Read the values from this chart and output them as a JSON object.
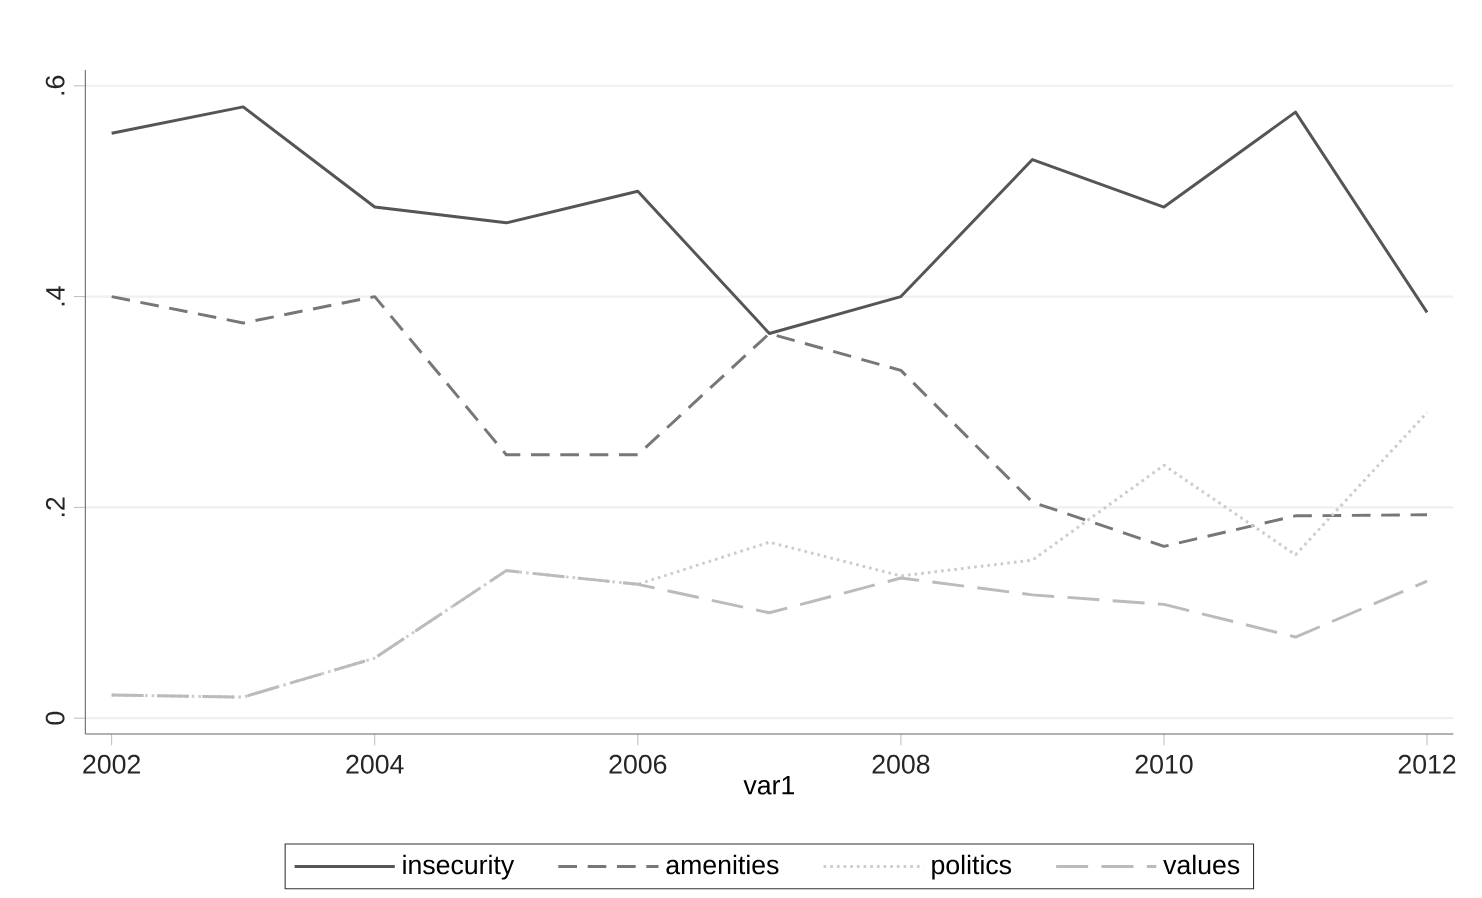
{
  "chart_data": {
    "type": "line",
    "xlabel": "var1",
    "x": [
      2002,
      2003,
      2004,
      2005,
      2006,
      2007,
      2008,
      2009,
      2010,
      2011,
      2012
    ],
    "xlim": [
      2001.8,
      2012.2
    ],
    "xticks": [
      2002,
      2004,
      2006,
      2008,
      2010,
      2012
    ],
    "ylim": [
      -0.015,
      0.615
    ],
    "yticks": [
      {
        "value": 0,
        "label": "0"
      },
      {
        "value": 0.2,
        "label": ".2"
      },
      {
        "value": 0.4,
        "label": ".4"
      },
      {
        "value": 0.6,
        "label": ".6"
      }
    ],
    "grid": "y",
    "legend": "bottom",
    "marker": "none",
    "series": [
      {
        "name": "insecurity",
        "color": "#555555",
        "line_style": "solid",
        "values": [
          0.555,
          0.58,
          0.485,
          0.47,
          0.5,
          0.365,
          0.4,
          0.53,
          0.485,
          0.575,
          0.385
        ]
      },
      {
        "name": "amenities",
        "color": "#777777",
        "line_style": "dashed",
        "values": [
          0.4,
          0.375,
          0.4,
          0.25,
          0.25,
          0.365,
          0.33,
          0.205,
          0.163,
          0.192,
          0.193
        ]
      },
      {
        "name": "politics",
        "color": "#cccccc",
        "line_style": "dotted",
        "values": [
          0.022,
          0.02,
          0.057,
          0.14,
          0.127,
          0.167,
          0.135,
          0.15,
          0.24,
          0.155,
          0.29
        ]
      },
      {
        "name": "values",
        "color": "#bbbbbb",
        "line_style": "longdashed",
        "values": [
          0.022,
          0.02,
          0.057,
          0.14,
          0.127,
          0.1,
          0.133,
          0.117,
          0.108,
          0.077,
          0.13
        ]
      }
    ]
  }
}
